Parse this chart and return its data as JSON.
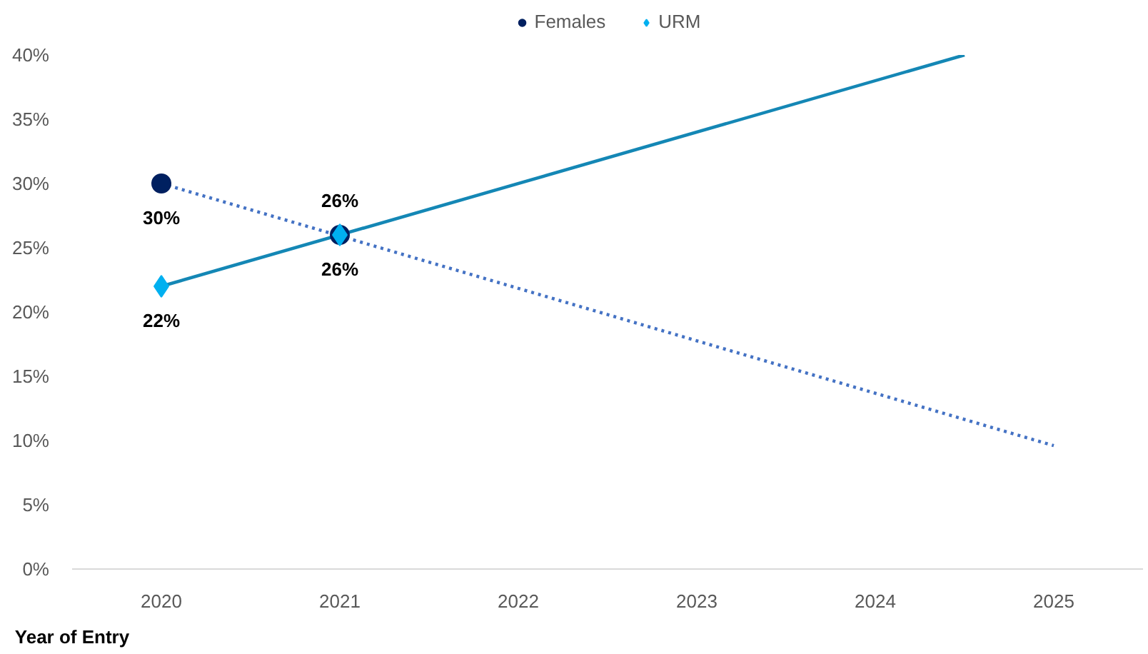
{
  "chart_data": {
    "type": "scatter",
    "xlabel": "Year of Entry",
    "xlim": [
      2019.5,
      2025.5
    ],
    "xticks": [
      2020,
      2021,
      2022,
      2023,
      2024,
      2025
    ],
    "ylim": [
      0,
      40
    ],
    "yticks": [
      {
        "value": 0,
        "label": "0%"
      },
      {
        "value": 5,
        "label": "5%"
      },
      {
        "value": 10,
        "label": "10%"
      },
      {
        "value": 15,
        "label": "15%"
      },
      {
        "value": 20,
        "label": "20%"
      },
      {
        "value": 25,
        "label": "25%"
      },
      {
        "value": 30,
        "label": "30%"
      },
      {
        "value": 35,
        "label": "35%"
      },
      {
        "value": 40,
        "label": "40%"
      }
    ],
    "legend": "top",
    "series": [
      {
        "name": "Females",
        "x": [
          2020,
          2021
        ],
        "values": [
          30,
          26
        ],
        "color": "#002060",
        "marker": "circle",
        "value_labels": [
          "30%",
          "26%"
        ]
      },
      {
        "name": "URM",
        "x": [
          2020,
          2021
        ],
        "values": [
          22,
          26
        ],
        "color": "#00b0f0",
        "marker": "diamond",
        "value_labels": [
          "22%",
          "26%"
        ]
      },
      {
        "type": "line",
        "x": [
          2020,
          2025
        ],
        "values": [
          30,
          9.6
        ],
        "color": "#4472c4",
        "line_style": "dotted"
      },
      {
        "type": "line",
        "x": [
          2020,
          2024.5
        ],
        "values": [
          22,
          40
        ],
        "color": "#1487b5",
        "line_style": "solid"
      }
    ]
  }
}
